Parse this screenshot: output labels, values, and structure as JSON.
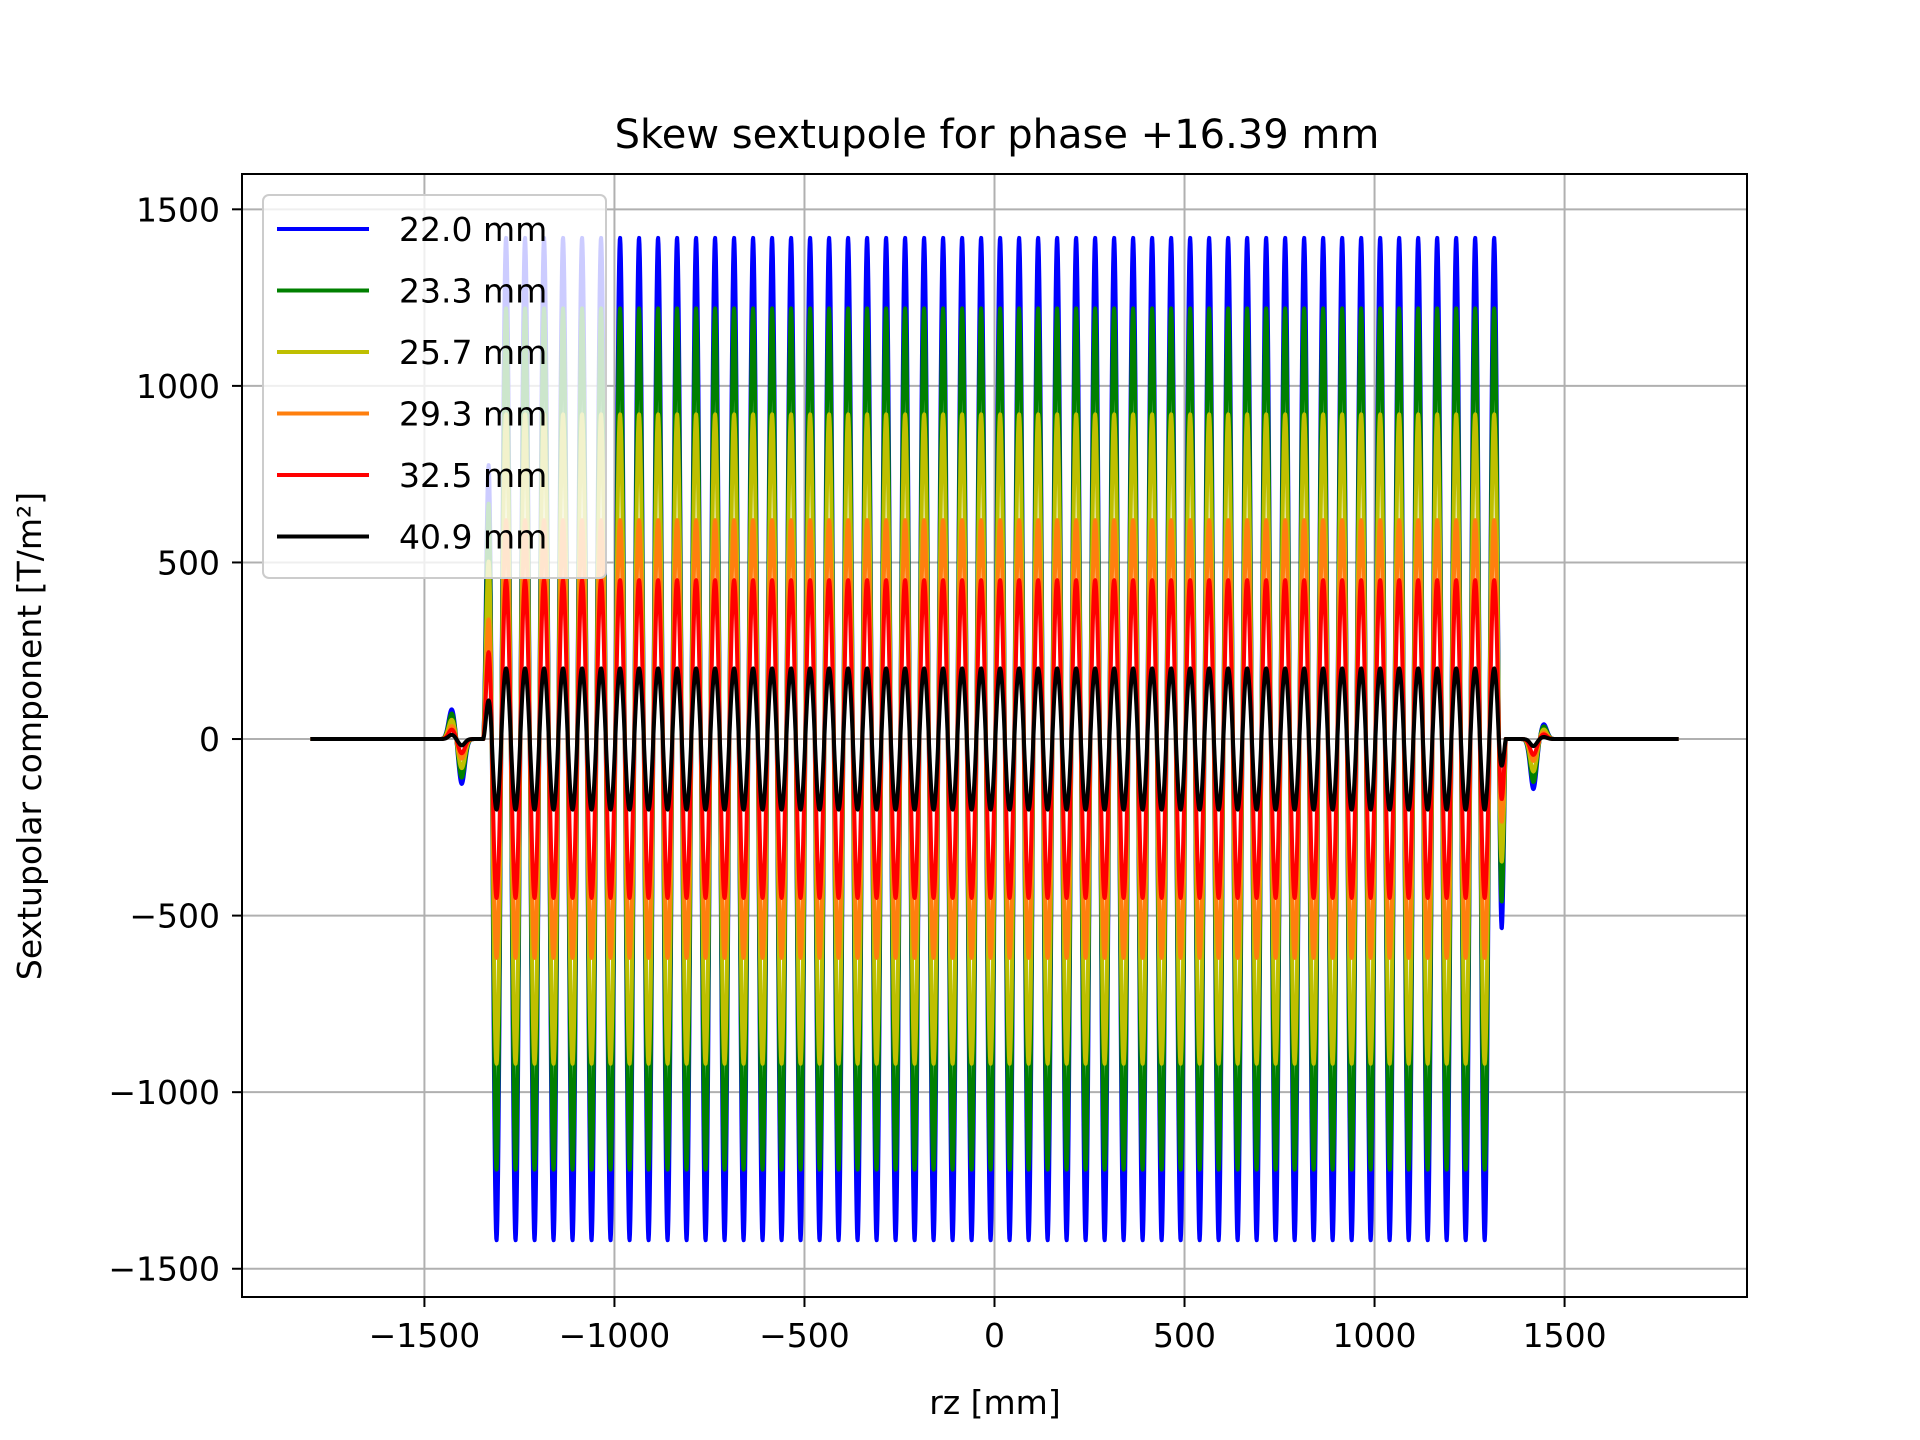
{
  "chart_data": {
    "type": "line",
    "title": "Skew sextupole for phase +16.39 mm",
    "xlabel": "rz [mm]",
    "ylabel": "Sextupolar component [T/m²]",
    "xlim": [
      -1980,
      1980
    ],
    "ylim": [
      -1580,
      1600
    ],
    "xticks": [
      -1500,
      -1000,
      -500,
      0,
      500,
      1000,
      1500
    ],
    "yticks": [
      -1500,
      -1000,
      -500,
      0,
      500,
      1000,
      1500
    ],
    "xtick_labels": [
      "−1500",
      "−1000",
      "−500",
      "0",
      "500",
      "1000",
      "1500"
    ],
    "ytick_labels": [
      "−1500",
      "−1000",
      "−500",
      "0",
      "500",
      "1000",
      "1500"
    ],
    "grid": true,
    "legend_position": "top-left",
    "x_range": [
      -1800,
      1800
    ],
    "oscillation": {
      "start": -1345,
      "end": 1345,
      "period": 50,
      "entrance_bump_center": -1420,
      "exit_bump_center": 1420
    },
    "series": [
      {
        "name": "22.0 mm",
        "color": "#0000ff",
        "amplitude": 1420
      },
      {
        "name": "23.3 mm",
        "color": "#008000",
        "amplitude": 1220
      },
      {
        "name": "25.7 mm",
        "color": "#bfbf00",
        "amplitude": 920
      },
      {
        "name": "29.3 mm",
        "color": "#ff7f0e",
        "amplitude": 620
      },
      {
        "name": "32.5 mm",
        "color": "#ff0000",
        "amplitude": 450
      },
      {
        "name": "40.9 mm",
        "color": "#000000",
        "amplitude": 200
      }
    ]
  }
}
